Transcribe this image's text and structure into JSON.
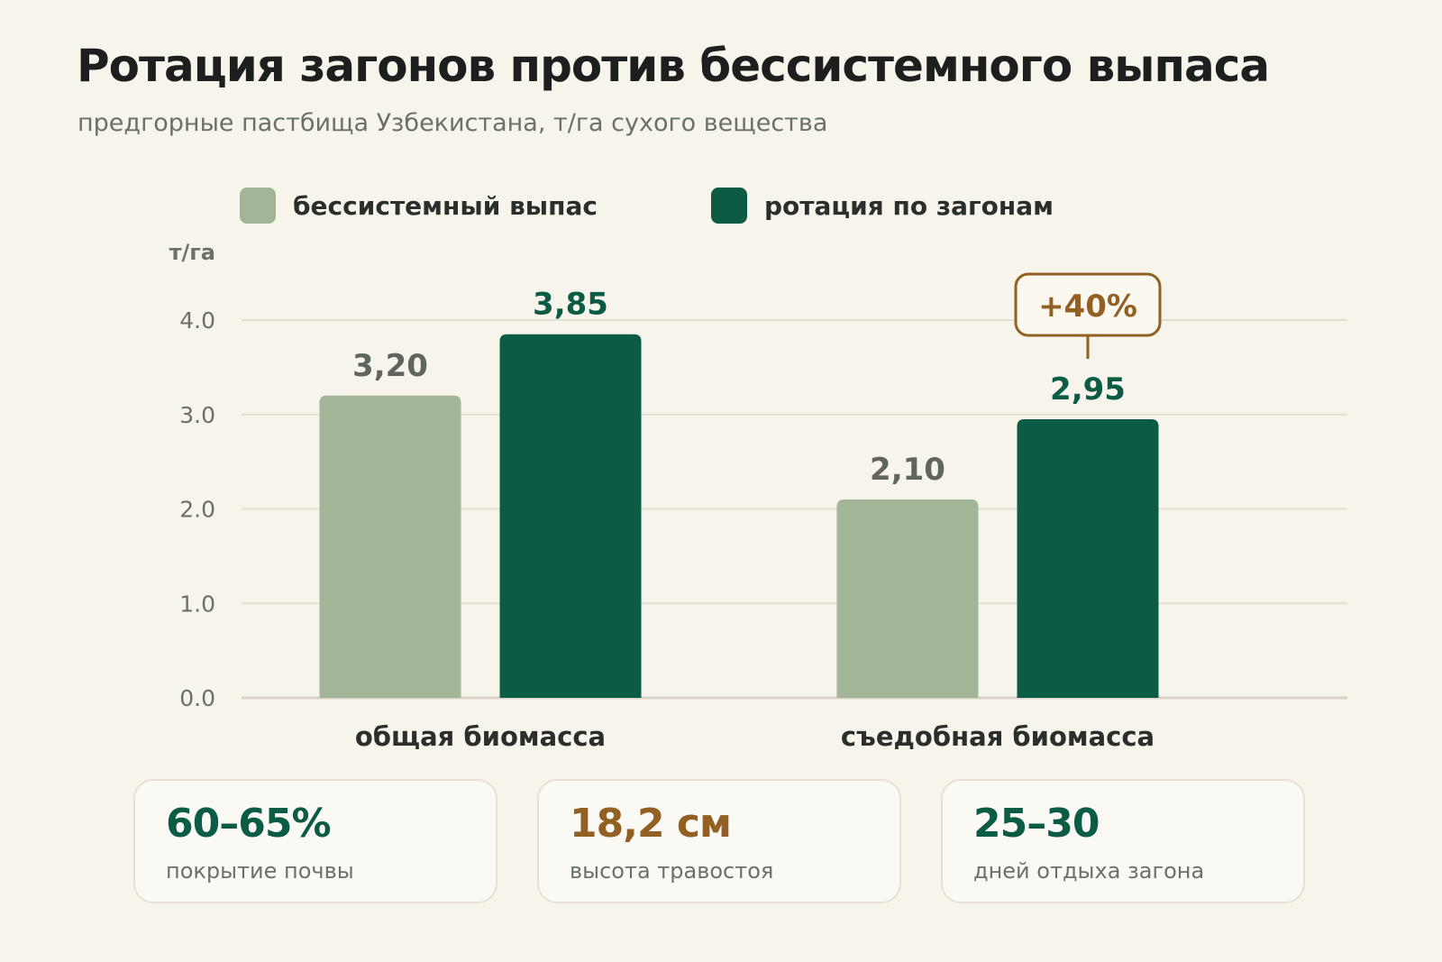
{
  "title": "Ротация загонов против бессистемного выпаса",
  "subtitle": "предгорные пастбища Узбекистана, т/га сухого вещества",
  "colors": {
    "background": "#f7f4ec",
    "series_light": "#a2b596",
    "series_dark": "#0c5b44",
    "accent": "#936023",
    "grid": "#e3dfd5",
    "axis_text": "#6a7268"
  },
  "legend": [
    {
      "label": "бессистемный выпас",
      "color": "#a2b596"
    },
    {
      "label": "ротация по загонам",
      "color": "#0c5b44"
    }
  ],
  "chart_data": {
    "type": "bar",
    "title": "Ротация загонов против бессистемного выпаса",
    "subtitle": "предгорные пастбища Узбекистана, т/га сухого вещества",
    "ylabel": "т/га",
    "xlabel": "",
    "ylim": [
      0,
      4
    ],
    "yticks": [
      "0.0",
      "1.0",
      "2.0",
      "3.0",
      "4.0"
    ],
    "grid": true,
    "legend_position": "top",
    "categories": [
      "общая биомасса",
      "съедобная биомасса"
    ],
    "series": [
      {
        "name": "бессистемный выпас",
        "values": [
          3.2,
          2.1
        ],
        "labels": [
          "3,20",
          "2,10"
        ],
        "color": "#a2b596",
        "label_color": "#5e665d"
      },
      {
        "name": "ротация по загонам",
        "values": [
          3.85,
          2.95
        ],
        "labels": [
          "3,85",
          "2,95"
        ],
        "color": "#0c5b44",
        "label_color": "#0c5b44"
      }
    ],
    "annotations": [
      {
        "text": "+40%",
        "category": 1,
        "series": 1,
        "color": "#936023"
      }
    ]
  },
  "stats": [
    {
      "value": "60–65%",
      "label": "покрытие почвы",
      "color": "#0c5b44"
    },
    {
      "value": "18,2 см",
      "label": "высота травостоя",
      "color": "#936023"
    },
    {
      "value": "25–30",
      "label": "дней отдыха загона",
      "color": "#0c5b44"
    }
  ]
}
